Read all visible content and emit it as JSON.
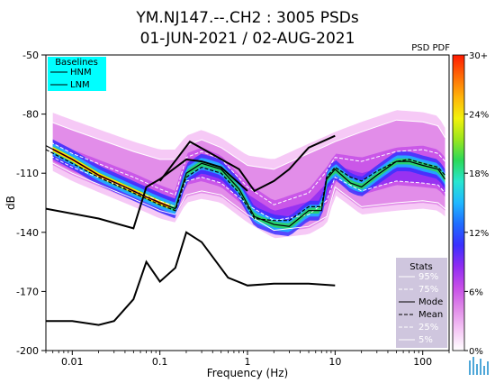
{
  "chart_data": {
    "type": "heatmap",
    "title_line1": "YM.NJ147.--.CH2 : 3005 PSDs",
    "title_line2": "01-JUN-2021 / 02-AUG-2021",
    "xlabel": "Frequency (Hz)",
    "ylabel": "dB",
    "x_scale": "log",
    "xlim": [
      0.005,
      200
    ],
    "ylim": [
      -200,
      -50
    ],
    "x_ticks": [
      {
        "value": 0.01,
        "label": "0.01"
      },
      {
        "value": 0.1,
        "label": "0.1"
      },
      {
        "value": 1,
        "label": "1"
      },
      {
        "value": 10,
        "label": "10"
      },
      {
        "value": 100,
        "label": "100"
      }
    ],
    "y_ticks": [
      {
        "value": -50,
        "label": "-50"
      },
      {
        "value": -80,
        "label": "-80"
      },
      {
        "value": -110,
        "label": "-110"
      },
      {
        "value": -140,
        "label": "-140"
      },
      {
        "value": -170,
        "label": "-170"
      },
      {
        "value": -200,
        "label": "-200"
      }
    ],
    "colorbar": {
      "label": "PSD PDF",
      "ticks": [
        "30+",
        "24%",
        "18%",
        "12%",
        "6%",
        "0%"
      ],
      "colors": [
        "#ffffff",
        "#f5c6f5",
        "#e08ae8",
        "#c64de8",
        "#8f2cf2",
        "#3a30ff",
        "#1f6dff",
        "#1fb8ff",
        "#28e6d0",
        "#2ad95a",
        "#9be61d",
        "#f2f20c",
        "#ffb40a",
        "#ff6a06",
        "#ff1a00"
      ]
    },
    "legend_baselines": {
      "title": "Baselines",
      "placement": "top-left",
      "bg_color": "#00ffff",
      "entries": [
        "HNM",
        "LNM"
      ]
    },
    "legend_stats": {
      "title": "Stats",
      "placement": "bottom-right",
      "bg_color": "#cfc6de",
      "entries": [
        "95%",
        "75%",
        "Mode",
        "Mean",
        "25%",
        "5%"
      ]
    },
    "series": [
      {
        "name": "HNM",
        "x": [
          0.1,
          0.22,
          0.32,
          0.8,
          1.2,
          2.0,
          3.0,
          5.0,
          10.0
        ],
        "y": [
          -114,
          -94,
          -98,
          -108,
          -119,
          -114,
          -108,
          -97,
          -91
        ]
      },
      {
        "name": "LNM",
        "x": [
          0.005,
          0.01,
          0.02,
          0.03,
          0.05,
          0.07,
          0.1,
          0.15,
          0.2,
          0.3,
          0.6,
          1.0,
          2.0,
          5.0,
          10.0
        ],
        "y": [
          -185,
          -185,
          -187,
          -185,
          -174,
          -155,
          -165,
          -158,
          -140,
          -145,
          -163,
          -167,
          -166,
          -166,
          -167
        ]
      },
      {
        "name": "LNM-long-period",
        "x": [
          0.005,
          0.02,
          0.05,
          0.07,
          0.1,
          0.2,
          0.3,
          0.5,
          1.0
        ],
        "y": [
          -128,
          -133,
          -138,
          -117,
          -113,
          -103,
          -104,
          -107,
          -119
        ]
      },
      {
        "name": "Mode",
        "x": [
          0.005,
          0.01,
          0.02,
          0.05,
          0.1,
          0.15,
          0.2,
          0.3,
          0.5,
          0.8,
          1.2,
          2.0,
          3.0,
          5.0,
          7.0,
          8.0,
          10.0,
          15.0,
          20.0,
          30.0,
          50.0,
          70.0,
          100.0,
          150.0,
          180.0
        ],
        "y": [
          -96,
          -103,
          -111,
          -119,
          -125,
          -128,
          -110,
          -105,
          -108,
          -118,
          -132,
          -136,
          -137,
          -129,
          -129,
          -113,
          -108,
          -115,
          -117,
          -111,
          -104,
          -104,
          -106,
          -108,
          -113
        ]
      },
      {
        "name": "Mean",
        "x": [
          0.005,
          0.01,
          0.02,
          0.05,
          0.1,
          0.15,
          0.2,
          0.3,
          0.5,
          0.8,
          1.2,
          2.0,
          3.0,
          5.0,
          7.0,
          8.0,
          10.0,
          15.0,
          20.0,
          30.0,
          50.0,
          70.0,
          100.0,
          150.0,
          180.0
        ],
        "y": [
          -98,
          -105,
          -112,
          -120,
          -126,
          -129,
          -112,
          -107,
          -110,
          -120,
          -133,
          -134,
          -134,
          -127,
          -127,
          -112,
          -107,
          -112,
          -114,
          -109,
          -104,
          -103,
          -105,
          -107,
          -111
        ]
      },
      {
        "name": "95%",
        "x": [
          0.005,
          0.01,
          0.05,
          0.1,
          0.15,
          0.2,
          0.3,
          0.5,
          1.0,
          2.0,
          5.0,
          8.0,
          10.0,
          20.0,
          50.0,
          100.0,
          150.0,
          180.0
        ],
        "y": [
          -83,
          -88,
          -99,
          -103,
          -103,
          -96,
          -93,
          -97,
          -106,
          -108,
          -100,
          -96,
          -94,
          -89,
          -83,
          -84,
          -86,
          -92
        ]
      },
      {
        "name": "75%",
        "x": [
          0.005,
          0.01,
          0.05,
          0.1,
          0.15,
          0.2,
          0.3,
          0.5,
          1.0,
          2.0,
          5.0,
          8.0,
          10.0,
          20.0,
          50.0,
          100.0,
          150.0,
          180.0
        ],
        "y": [
          -93,
          -100,
          -112,
          -118,
          -121,
          -102,
          -99,
          -103,
          -117,
          -126,
          -120,
          -109,
          -102,
          -104,
          -99,
          -98,
          -100,
          -104
        ]
      },
      {
        "name": "25%",
        "x": [
          0.005,
          0.01,
          0.05,
          0.1,
          0.15,
          0.2,
          0.3,
          0.5,
          1.0,
          2.0,
          5.0,
          8.0,
          10.0,
          20.0,
          50.0,
          100.0,
          150.0,
          180.0
        ],
        "y": [
          -100,
          -107,
          -119,
          -124,
          -127,
          -114,
          -112,
          -115,
          -126,
          -134,
          -131,
          -124,
          -112,
          -119,
          -114,
          -115,
          -116,
          -120
        ]
      },
      {
        "name": "5%",
        "x": [
          0.005,
          0.01,
          0.05,
          0.1,
          0.15,
          0.2,
          0.3,
          0.5,
          1.0,
          2.0,
          5.0,
          8.0,
          10.0,
          20.0,
          50.0,
          100.0,
          150.0,
          180.0
        ],
        "y": [
          -103,
          -110,
          -123,
          -129,
          -131,
          -121,
          -119,
          -121,
          -131,
          -139,
          -137,
          -132,
          -117,
          -127,
          -125,
          -124,
          -125,
          -128
        ]
      }
    ]
  }
}
